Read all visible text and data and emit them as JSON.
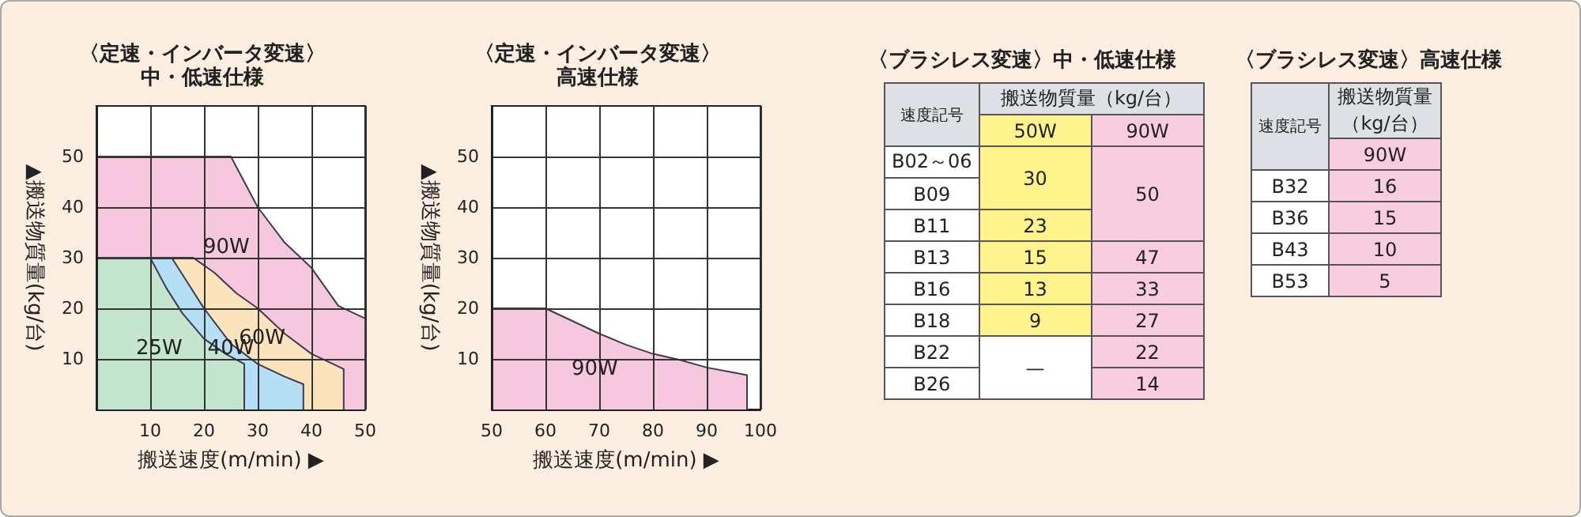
{
  "chart_data": [
    {
      "type": "area",
      "title": "〈定速・インバータ変速〉",
      "subtitle": "中・低速仕様",
      "xlabel": "搬送速度(m/min) ▶",
      "ylabel": "▲搬送物質量(kg/台)",
      "xlim": [
        0,
        50
      ],
      "ylim": [
        0,
        60
      ],
      "xticks": [
        10,
        20,
        30,
        40,
        50
      ],
      "yticks": [
        10,
        20,
        30,
        40,
        50
      ],
      "grid": true,
      "series": [
        {
          "name": "90W",
          "color": "#f6c8dd",
          "x": [
            0,
            25,
            27.5,
            30,
            35,
            40,
            45,
            50,
            50
          ],
          "values": [
            50,
            50,
            45,
            40,
            33,
            28,
            20.5,
            18,
            0
          ]
        },
        {
          "name": "60W",
          "color": "#fbe4bb",
          "x": [
            0,
            18,
            22,
            26,
            30,
            35,
            40,
            44,
            46,
            46
          ],
          "values": [
            30,
            30,
            27,
            23,
            20,
            15,
            11,
            9,
            8,
            0
          ]
        },
        {
          "name": "40W",
          "color": "#b5dff4",
          "x": [
            0,
            14,
            17,
            20,
            25,
            30,
            35,
            38.5,
            38.5
          ],
          "values": [
            30,
            30,
            25,
            20,
            13,
            9,
            6.5,
            5,
            0
          ]
        },
        {
          "name": "25W",
          "color": "#c5e6ce",
          "x": [
            0,
            10,
            13,
            16,
            20,
            24,
            27.5,
            27.5
          ],
          "values": [
            30,
            30,
            24,
            19,
            14,
            11,
            9,
            0
          ]
        }
      ]
    },
    {
      "type": "area",
      "title": "〈定速・インバータ変速〉",
      "subtitle": "高速仕様",
      "xlabel": "搬送速度(m/min) ▶",
      "ylabel": "▲搬送物質量(kg/台)",
      "xlim": [
        50,
        100
      ],
      "ylim": [
        0,
        60
      ],
      "xticks": [
        50,
        60,
        70,
        80,
        90,
        100
      ],
      "yticks": [
        10,
        20,
        30,
        40,
        50
      ],
      "grid": true,
      "series": [
        {
          "name": "90W",
          "color": "#f6c8dd",
          "x": [
            50,
            60,
            65,
            70,
            75,
            80,
            85,
            90,
            95,
            97.5,
            97.5
          ],
          "values": [
            20,
            20,
            17.5,
            15,
            12.8,
            11,
            9.8,
            8.3,
            7.3,
            6.8,
            0
          ]
        }
      ]
    },
    {
      "type": "other",
      "title": "〈ブラシレス変速〉中・低速仕様",
      "xlabel": "速度記号",
      "ylabel": "搬送物質量（kg/台）",
      "data_labels": true,
      "categories": [
        "B02～06",
        "B09",
        "B11",
        "B13",
        "B16",
        "B18",
        "B22",
        "B26"
      ],
      "series": [
        {
          "name": "50W",
          "color": "#fff38e",
          "values": [
            30,
            null,
            23,
            15,
            13,
            9,
            null,
            null
          ],
          "value_labels": [
            "30",
            null,
            "23",
            "15",
            "13",
            "9",
            "—",
            null
          ]
        },
        {
          "name": "90W",
          "color": "#f8cde0",
          "values": [
            50,
            null,
            null,
            47,
            33,
            27,
            22,
            14
          ]
        }
      ]
    },
    {
      "type": "other",
      "title": "〈ブラシレス変速〉高速仕様",
      "xlabel": "速度記号",
      "ylabel": "搬送物質量（kg/台）",
      "data_labels": true,
      "categories": [
        "B32",
        "B36",
        "B43",
        "B53"
      ],
      "series": [
        {
          "name": "90W",
          "color": "#f8cde0",
          "values": [
            16,
            15,
            10,
            5
          ]
        }
      ]
    }
  ]
}
